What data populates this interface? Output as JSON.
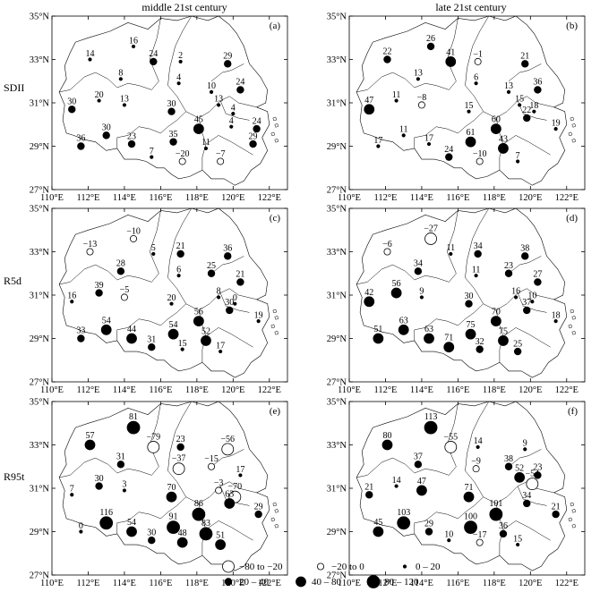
{
  "columns": [
    {
      "title": "middle 21st century"
    },
    {
      "title": "late 21st century"
    }
  ],
  "rows": [
    {
      "label": "SDII"
    },
    {
      "label": "R5d"
    },
    {
      "label": "R95t"
    }
  ],
  "axes": {
    "x_ticks": [
      110,
      112,
      114,
      116,
      118,
      120,
      122
    ],
    "x_tick_labels": [
      "110°E",
      "112°E",
      "114°E",
      "116°E",
      "118°E",
      "120°E",
      "122°E"
    ],
    "y_ticks": [
      27,
      29,
      31,
      33,
      35
    ],
    "y_tick_labels": [
      "27°N",
      "29°N",
      "31°N",
      "33°N",
      "35°N"
    ],
    "xlim": [
      110,
      123
    ],
    "ylim": [
      27,
      35
    ]
  },
  "legend": {
    "items": [
      {
        "label": "−80 to −20",
        "style": "open",
        "size": "large"
      },
      {
        "label": "−20 to 0",
        "style": "open",
        "size": "small"
      },
      {
        "label": "0 – 20",
        "style": "filled",
        "size": "tiny"
      },
      {
        "label": "20 – 40",
        "style": "filled",
        "size": "small"
      },
      {
        "label": "40 – 80",
        "style": "filled",
        "size": "medium"
      },
      {
        "label": "80 – 120",
        "style": "filled",
        "size": "large"
      }
    ]
  },
  "chart_data": [
    {
      "type": "scatter",
      "panel": "(a)",
      "row": "SDII",
      "column": "middle 21st century",
      "points": [
        {
          "lon": 112.1,
          "lat": 33.0,
          "v": 14
        },
        {
          "lon": 114.5,
          "lat": 33.6,
          "v": 16
        },
        {
          "lon": 115.6,
          "lat": 32.9,
          "v": 24
        },
        {
          "lon": 117.1,
          "lat": 32.9,
          "v": 2
        },
        {
          "lon": 119.7,
          "lat": 32.8,
          "v": 29
        },
        {
          "lon": 113.8,
          "lat": 32.1,
          "v": 8
        },
        {
          "lon": 117.0,
          "lat": 31.9,
          "v": 4
        },
        {
          "lon": 118.8,
          "lat": 31.5,
          "v": 10
        },
        {
          "lon": 120.4,
          "lat": 31.6,
          "v": 24
        },
        {
          "lon": 111.1,
          "lat": 30.7,
          "v": 30
        },
        {
          "lon": 112.6,
          "lat": 31.1,
          "v": 20
        },
        {
          "lon": 114.0,
          "lat": 30.9,
          "v": 13
        },
        {
          "lon": 116.6,
          "lat": 30.6,
          "v": 30
        },
        {
          "lon": 119.2,
          "lat": 30.9,
          "v": 13
        },
        {
          "lon": 120.0,
          "lat": 30.5,
          "v": 4
        },
        {
          "lon": 118.1,
          "lat": 29.8,
          "v": 45
        },
        {
          "lon": 119.9,
          "lat": 29.9,
          "v": 4
        },
        {
          "lon": 121.3,
          "lat": 29.8,
          "v": 24
        },
        {
          "lon": 111.6,
          "lat": 29.0,
          "v": 36
        },
        {
          "lon": 113.0,
          "lat": 29.5,
          "v": 30
        },
        {
          "lon": 114.4,
          "lat": 29.1,
          "v": 23
        },
        {
          "lon": 116.7,
          "lat": 29.2,
          "v": 35
        },
        {
          "lon": 118.5,
          "lat": 28.9,
          "v": 11
        },
        {
          "lon": 115.5,
          "lat": 28.5,
          "v": 7
        },
        {
          "lon": 117.2,
          "lat": 28.3,
          "v": -20
        },
        {
          "lon": 119.3,
          "lat": 28.3,
          "v": -7
        },
        {
          "lon": 121.1,
          "lat": 29.1,
          "v": 29
        }
      ]
    },
    {
      "type": "scatter",
      "panel": "(b)",
      "row": "SDII",
      "column": "late 21st century",
      "points": [
        {
          "lon": 112.1,
          "lat": 33.0,
          "v": 22
        },
        {
          "lon": 114.5,
          "lat": 33.6,
          "v": 26
        },
        {
          "lon": 115.6,
          "lat": 32.9,
          "v": 41
        },
        {
          "lon": 117.1,
          "lat": 32.9,
          "v": -1
        },
        {
          "lon": 119.7,
          "lat": 32.8,
          "v": 21
        },
        {
          "lon": 113.8,
          "lat": 32.1,
          "v": 13
        },
        {
          "lon": 117.0,
          "lat": 31.9,
          "v": 6
        },
        {
          "lon": 118.8,
          "lat": 31.5,
          "v": 13
        },
        {
          "lon": 120.4,
          "lat": 31.6,
          "v": 36
        },
        {
          "lon": 111.1,
          "lat": 30.7,
          "v": 47
        },
        {
          "lon": 112.6,
          "lat": 31.1,
          "v": 11
        },
        {
          "lon": 114.0,
          "lat": 30.9,
          "v": -8
        },
        {
          "lon": 116.6,
          "lat": 30.6,
          "v": 15
        },
        {
          "lon": 119.4,
          "lat": 30.9,
          "v": 15
        },
        {
          "lon": 120.2,
          "lat": 30.6,
          "v": 18
        },
        {
          "lon": 118.1,
          "lat": 29.8,
          "v": 60
        },
        {
          "lon": 119.8,
          "lat": 30.3,
          "v": 22
        },
        {
          "lon": 121.4,
          "lat": 29.8,
          "v": 19
        },
        {
          "lon": 111.6,
          "lat": 29.0,
          "v": 17
        },
        {
          "lon": 113.0,
          "lat": 29.5,
          "v": 11
        },
        {
          "lon": 114.4,
          "lat": 29.1,
          "v": 17
        },
        {
          "lon": 116.7,
          "lat": 29.2,
          "v": 61
        },
        {
          "lon": 118.5,
          "lat": 28.9,
          "v": 43
        },
        {
          "lon": 115.5,
          "lat": 28.5,
          "v": 24
        },
        {
          "lon": 117.2,
          "lat": 28.3,
          "v": -10
        },
        {
          "lon": 119.3,
          "lat": 28.3,
          "v": 7
        }
      ]
    },
    {
      "type": "scatter",
      "panel": "(c)",
      "row": "R5d",
      "column": "middle 21st century",
      "points": [
        {
          "lon": 112.1,
          "lat": 33.0,
          "v": -13
        },
        {
          "lon": 114.5,
          "lat": 33.6,
          "v": -10
        },
        {
          "lon": 115.6,
          "lat": 32.9,
          "v": 5
        },
        {
          "lon": 117.1,
          "lat": 32.9,
          "v": 21
        },
        {
          "lon": 119.7,
          "lat": 32.8,
          "v": 36
        },
        {
          "lon": 113.8,
          "lat": 32.1,
          "v": 28
        },
        {
          "lon": 117.0,
          "lat": 31.9,
          "v": 6
        },
        {
          "lon": 118.8,
          "lat": 32.0,
          "v": 25
        },
        {
          "lon": 120.4,
          "lat": 31.6,
          "v": 21
        },
        {
          "lon": 111.1,
          "lat": 30.7,
          "v": 16
        },
        {
          "lon": 112.6,
          "lat": 31.1,
          "v": 39
        },
        {
          "lon": 114.0,
          "lat": 30.9,
          "v": -5
        },
        {
          "lon": 116.6,
          "lat": 30.6,
          "v": 20
        },
        {
          "lon": 119.2,
          "lat": 30.9,
          "v": 8
        },
        {
          "lon": 120.1,
          "lat": 30.6,
          "v": 0
        },
        {
          "lon": 118.1,
          "lat": 29.8,
          "v": 56
        },
        {
          "lon": 119.8,
          "lat": 30.3,
          "v": 30
        },
        {
          "lon": 121.4,
          "lat": 29.8,
          "v": 19
        },
        {
          "lon": 111.6,
          "lat": 29.0,
          "v": 33
        },
        {
          "lon": 113.0,
          "lat": 29.4,
          "v": 54
        },
        {
          "lon": 114.4,
          "lat": 29.0,
          "v": 44
        },
        {
          "lon": 116.7,
          "lat": 29.2,
          "v": 54
        },
        {
          "lon": 118.5,
          "lat": 28.9,
          "v": 52
        },
        {
          "lon": 115.5,
          "lat": 28.6,
          "v": 31
        },
        {
          "lon": 117.2,
          "lat": 28.5,
          "v": 15
        },
        {
          "lon": 119.3,
          "lat": 28.4,
          "v": 17
        }
      ]
    },
    {
      "type": "scatter",
      "panel": "(d)",
      "row": "R5d",
      "column": "late 21st century",
      "points": [
        {
          "lon": 112.1,
          "lat": 33.0,
          "v": -6
        },
        {
          "lon": 114.5,
          "lat": 33.6,
          "v": -27
        },
        {
          "lon": 115.6,
          "lat": 32.9,
          "v": 11
        },
        {
          "lon": 117.1,
          "lat": 32.9,
          "v": 34
        },
        {
          "lon": 119.7,
          "lat": 32.8,
          "v": 38
        },
        {
          "lon": 113.8,
          "lat": 32.1,
          "v": 34
        },
        {
          "lon": 117.0,
          "lat": 31.9,
          "v": 11
        },
        {
          "lon": 118.8,
          "lat": 32.0,
          "v": 23
        },
        {
          "lon": 120.4,
          "lat": 31.6,
          "v": 27
        },
        {
          "lon": 111.1,
          "lat": 30.7,
          "v": 42
        },
        {
          "lon": 112.6,
          "lat": 31.1,
          "v": 56
        },
        {
          "lon": 114.0,
          "lat": 30.9,
          "v": 9
        },
        {
          "lon": 116.6,
          "lat": 30.6,
          "v": 30
        },
        {
          "lon": 119.2,
          "lat": 30.9,
          "v": 16
        },
        {
          "lon": 120.1,
          "lat": 30.7,
          "v": 10
        },
        {
          "lon": 118.1,
          "lat": 29.8,
          "v": 70
        },
        {
          "lon": 119.8,
          "lat": 30.3,
          "v": 37
        },
        {
          "lon": 121.4,
          "lat": 29.8,
          "v": 18
        },
        {
          "lon": 111.6,
          "lat": 29.0,
          "v": 51
        },
        {
          "lon": 113.0,
          "lat": 29.4,
          "v": 63
        },
        {
          "lon": 114.4,
          "lat": 29.0,
          "v": 63
        },
        {
          "lon": 116.7,
          "lat": 29.2,
          "v": 75
        },
        {
          "lon": 118.5,
          "lat": 28.9,
          "v": 75
        },
        {
          "lon": 115.5,
          "lat": 28.6,
          "v": 71
        },
        {
          "lon": 117.2,
          "lat": 28.5,
          "v": 32
        },
        {
          "lon": 119.3,
          "lat": 28.4,
          "v": 25
        }
      ]
    },
    {
      "type": "scatter",
      "panel": "(e)",
      "row": "R95t",
      "column": "middle 21st century",
      "points": [
        {
          "lon": 112.1,
          "lat": 33.0,
          "v": 57
        },
        {
          "lon": 114.5,
          "lat": 33.8,
          "v": 81
        },
        {
          "lon": 115.6,
          "lat": 32.9,
          "v": -79
        },
        {
          "lon": 117.1,
          "lat": 32.9,
          "v": 23
        },
        {
          "lon": 119.7,
          "lat": 32.8,
          "v": -56
        },
        {
          "lon": 113.8,
          "lat": 32.1,
          "v": 31
        },
        {
          "lon": 117.0,
          "lat": 31.9,
          "v": -37
        },
        {
          "lon": 118.8,
          "lat": 32.0,
          "v": -15
        },
        {
          "lon": 120.4,
          "lat": 31.6,
          "v": 17
        },
        {
          "lon": 111.1,
          "lat": 30.7,
          "v": 7
        },
        {
          "lon": 112.6,
          "lat": 31.1,
          "v": 30
        },
        {
          "lon": 114.0,
          "lat": 30.9,
          "v": 3
        },
        {
          "lon": 116.6,
          "lat": 30.6,
          "v": 70
        },
        {
          "lon": 119.2,
          "lat": 30.9,
          "v": -3
        },
        {
          "lon": 120.1,
          "lat": 30.6,
          "v": -70
        },
        {
          "lon": 118.1,
          "lat": 29.8,
          "v": 86
        },
        {
          "lon": 119.8,
          "lat": 30.3,
          "v": 63
        },
        {
          "lon": 121.4,
          "lat": 29.8,
          "v": 29
        },
        {
          "lon": 111.6,
          "lat": 29.0,
          "v": 0
        },
        {
          "lon": 113.0,
          "lat": 29.4,
          "v": 116
        },
        {
          "lon": 114.4,
          "lat": 29.0,
          "v": 54
        },
        {
          "lon": 116.7,
          "lat": 29.2,
          "v": 91
        },
        {
          "lon": 118.5,
          "lat": 28.9,
          "v": 83
        },
        {
          "lon": 115.5,
          "lat": 28.6,
          "v": 30
        },
        {
          "lon": 117.2,
          "lat": 28.5,
          "v": 48
        },
        {
          "lon": 119.3,
          "lat": 28.4,
          "v": 51
        }
      ]
    },
    {
      "type": "scatter",
      "panel": "(f)",
      "row": "R95t",
      "column": "late 21st century",
      "points": [
        {
          "lon": 112.1,
          "lat": 33.0,
          "v": 80
        },
        {
          "lon": 114.5,
          "lat": 33.8,
          "v": 113
        },
        {
          "lon": 115.6,
          "lat": 32.9,
          "v": -55
        },
        {
          "lon": 117.1,
          "lat": 32.9,
          "v": 14
        },
        {
          "lon": 119.7,
          "lat": 32.8,
          "v": 9
        },
        {
          "lon": 113.8,
          "lat": 32.1,
          "v": 37
        },
        {
          "lon": 117.0,
          "lat": 31.9,
          "v": -9
        },
        {
          "lon": 118.8,
          "lat": 32.0,
          "v": 38
        },
        {
          "lon": 120.4,
          "lat": 31.6,
          "v": 23
        },
        {
          "lon": 111.1,
          "lat": 30.7,
          "v": 21
        },
        {
          "lon": 112.6,
          "lat": 31.1,
          "v": 14
        },
        {
          "lon": 114.0,
          "lat": 30.9,
          "v": 47
        },
        {
          "lon": 116.6,
          "lat": 30.6,
          "v": 71
        },
        {
          "lon": 119.4,
          "lat": 31.5,
          "v": 52
        },
        {
          "lon": 120.1,
          "lat": 31.2,
          "v": -54
        },
        {
          "lon": 118.1,
          "lat": 29.8,
          "v": 101
        },
        {
          "lon": 119.8,
          "lat": 30.3,
          "v": 34
        },
        {
          "lon": 121.4,
          "lat": 29.8,
          "v": 21
        },
        {
          "lon": 111.6,
          "lat": 29.0,
          "v": 45
        },
        {
          "lon": 113.0,
          "lat": 29.4,
          "v": 103
        },
        {
          "lon": 114.4,
          "lat": 29.0,
          "v": 29
        },
        {
          "lon": 116.7,
          "lat": 29.2,
          "v": 100
        },
        {
          "lon": 118.5,
          "lat": 28.9,
          "v": 36
        },
        {
          "lon": 115.5,
          "lat": 28.6,
          "v": 10
        },
        {
          "lon": 117.2,
          "lat": 28.5,
          "v": -17
        },
        {
          "lon": 119.3,
          "lat": 28.4,
          "v": 15
        }
      ]
    }
  ]
}
